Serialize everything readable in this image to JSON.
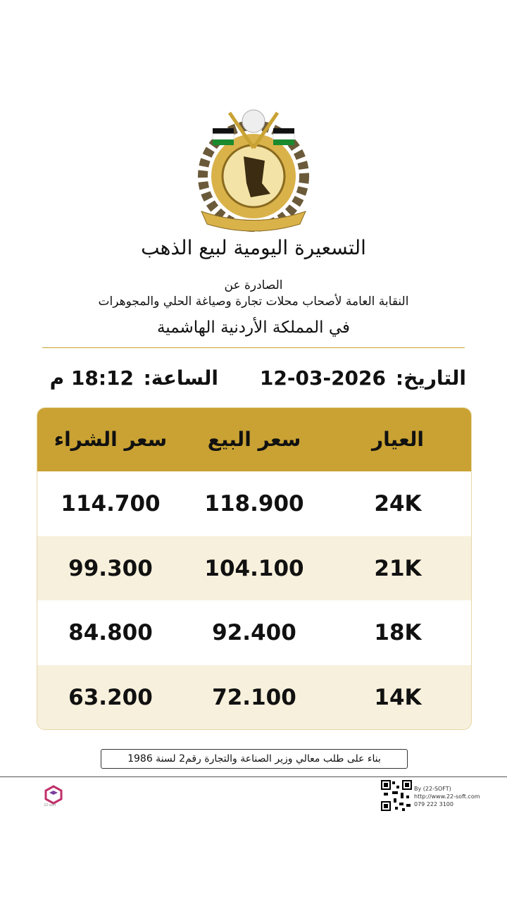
{
  "header": {
    "title": "التسعيرة اليومية لبيع الذهب",
    "issued_by": "الصادرة عن",
    "organization": "النقابة العامة لأصحاب محلات تجارة وصياغة الحلي والمجوهرات",
    "country": "في المملكة الأردنية الهاشمية"
  },
  "datetime": {
    "date_label": "التاريخ:",
    "date": "12-03-2026",
    "time_label": "الساعة:",
    "time": "18:12 م"
  },
  "table": {
    "headers": [
      "العيار",
      "سعر البيع",
      "سعر الشراء"
    ],
    "rows": [
      [
        "24K",
        "118.900",
        "114.700"
      ],
      [
        "21K",
        "104.100",
        "99.300"
      ],
      [
        "18K",
        "92.400",
        "84.800"
      ],
      [
        "14K",
        "72.100",
        "63.200"
      ]
    ]
  },
  "note": "بناء على طلب معالي وزير الصناعة والتجارة رقم2 لسنة 1986",
  "footer": {
    "brand": "22-soft",
    "by": "By (22-SOFT)",
    "url": "http://www.22-soft.com",
    "phone": "079 222 3100"
  }
}
